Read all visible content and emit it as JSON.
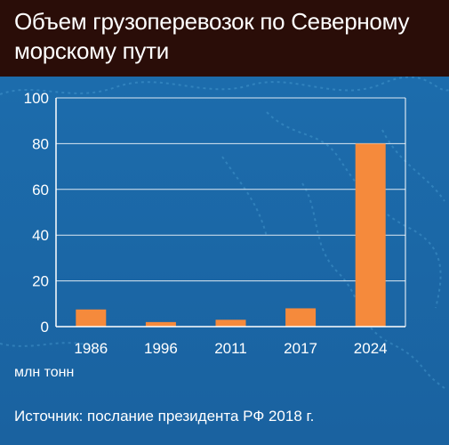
{
  "title": "Объем грузоперевозок по Северному морскому пути",
  "unit_label": "млн тонн",
  "source": "Источник: послание президента РФ 2018 г.",
  "colors": {
    "background": "#1a69a8",
    "title_bar": "#2a0d08",
    "bar": "#f58a3c",
    "axis": "#ffffff"
  },
  "chart_data": {
    "type": "bar",
    "categories": [
      "1986",
      "1996",
      "2011",
      "2017",
      "2024"
    ],
    "values": [
      7.5,
      2,
      3,
      8,
      80
    ],
    "ylim": [
      0,
      100
    ],
    "yticks": [
      0,
      20,
      40,
      60,
      80,
      100
    ],
    "ylabel": "млн тонн",
    "grid": true,
    "legend": "none"
  }
}
